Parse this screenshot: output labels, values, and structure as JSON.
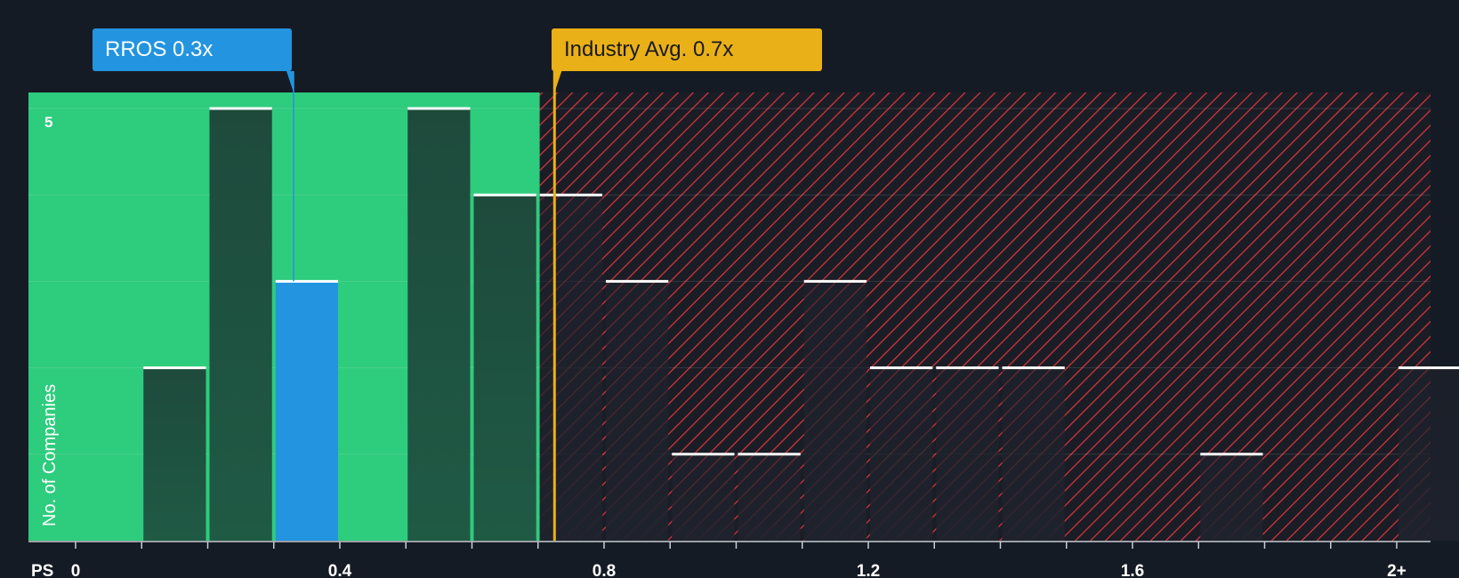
{
  "chart_data": {
    "type": "bar",
    "xlabel": "PS",
    "ylabel": "No. of Companies",
    "x_ticks": [
      "0",
      "0.4",
      "0.8",
      "1.2",
      "1.6",
      "2+"
    ],
    "y_ticks": [
      "5"
    ],
    "xlim": [
      0,
      2.05
    ],
    "ylim": [
      0,
      5.15
    ],
    "bin_width": 0.1,
    "bins": [
      {
        "start": 0.1,
        "count": 2
      },
      {
        "start": 0.2,
        "count": 5
      },
      {
        "start": 0.3,
        "count": 3
      },
      {
        "start": 0.5,
        "count": 5
      },
      {
        "start": 0.6,
        "count": 4
      },
      {
        "start": 0.7,
        "count": 4
      },
      {
        "start": 0.8,
        "count": 3
      },
      {
        "start": 0.9,
        "count": 1
      },
      {
        "start": 1.0,
        "count": 1
      },
      {
        "start": 1.1,
        "count": 3
      },
      {
        "start": 1.2,
        "count": 2
      },
      {
        "start": 1.3,
        "count": 2
      },
      {
        "start": 1.4,
        "count": 2
      },
      {
        "start": 1.7,
        "count": 1
      },
      {
        "start": 2.0,
        "count": 2
      }
    ],
    "highlight_bin_start": 0.3,
    "fair_value_boundary": 0.7,
    "company": {
      "ticker": "RROS",
      "value": 0.33,
      "label": "RROS 0.3x"
    },
    "industry_average": {
      "value": 0.725,
      "label": "Industry Avg. 0.7x"
    },
    "colors": {
      "background": "#151b24",
      "green_zone": "#2ecc7d",
      "red_hatch": "#d9343c",
      "bar_dark": "#1f4a3c",
      "bar_highlight": "#2394e0",
      "bar_red_zone": "#1e222c",
      "bar_cap": "#ffffff",
      "company": "#2394e0",
      "industry": "#e9b018"
    }
  }
}
